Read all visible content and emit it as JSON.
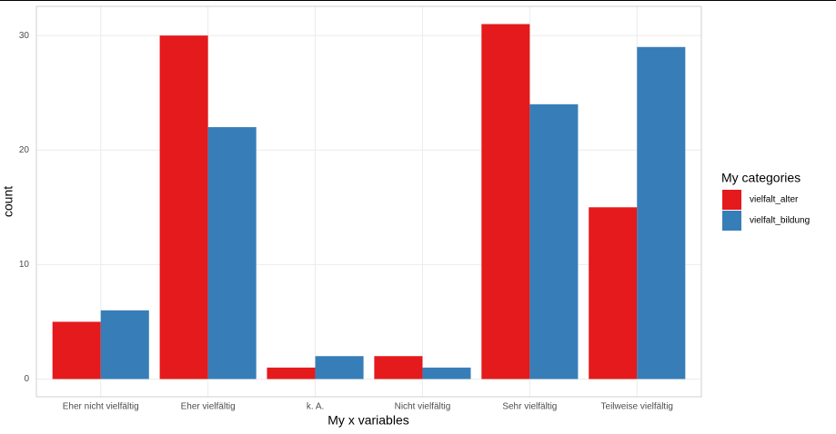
{
  "chart_data": {
    "type": "bar",
    "x_label": "My x variables",
    "y_label": "count",
    "categories": [
      "Eher nicht vielfältig",
      "Eher vielfältig",
      "k. A.",
      "Nicht vielfältig",
      "Sehr vielfältig",
      "Teilweise vielfältig"
    ],
    "series": [
      {
        "name": "vielfalt_alter",
        "color": "#e41a1c",
        "values": [
          5,
          30,
          1,
          2,
          31,
          15
        ]
      },
      {
        "name": "vielfalt_bildung",
        "color": "#377eb8",
        "values": [
          6,
          22,
          2,
          1,
          24,
          29
        ]
      }
    ],
    "legend_title": "My categories",
    "ylim": [
      -1.55,
      32.55
    ],
    "yticks": [
      0,
      10,
      20,
      30
    ],
    "grid": true,
    "legend": "right"
  }
}
